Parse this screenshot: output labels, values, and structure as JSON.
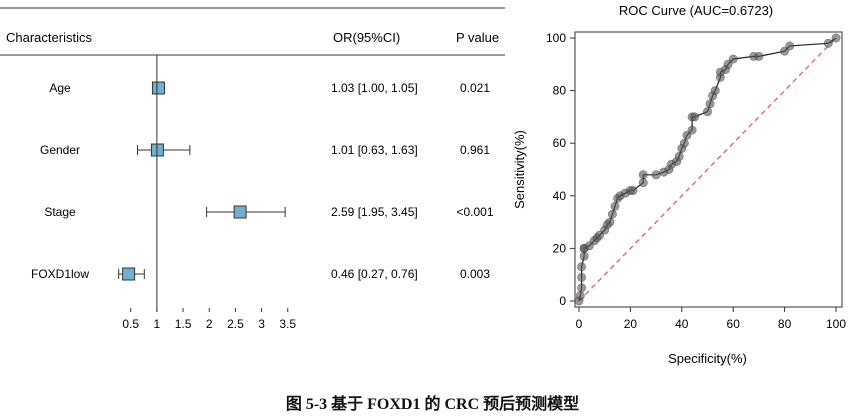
{
  "caption": "图 5-3  基于 FOXD1 的 CRC 预后预测模型",
  "chart_data": [
    {
      "type": "forest",
      "headers": {
        "characteristics": "Characteristics",
        "or_ci": "OR(95%CI)",
        "p_value": "P value"
      },
      "rows": [
        {
          "label": "Age",
          "or": 1.03,
          "lower": 1.0,
          "upper": 1.05,
          "or_text": "1.03 [1.00, 1.05]",
          "p_text": "0.021"
        },
        {
          "label": "Gender",
          "or": 1.01,
          "lower": 0.63,
          "upper": 1.63,
          "or_text": "1.01 [0.63, 1.63]",
          "p_text": "0.961"
        },
        {
          "label": "Stage",
          "or": 2.59,
          "lower": 1.95,
          "upper": 3.45,
          "or_text": "2.59 [1.95, 3.45]",
          "p_text": "<0.001"
        },
        {
          "label": "FOXD1low",
          "or": 0.46,
          "lower": 0.27,
          "upper": 0.76,
          "or_text": "0.46 [0.27, 0.76]",
          "p_text": "0.003"
        }
      ],
      "x_ticks": [
        0.5,
        1,
        1.5,
        2,
        2.5,
        3,
        3.5
      ],
      "x_tick_labels": [
        "0.5",
        "1",
        "1.5",
        "2",
        "2.5",
        "3",
        "3.5"
      ],
      "xlim": [
        0.2,
        3.6
      ],
      "reference_line": 1,
      "marker_color": "#6fb0d0"
    },
    {
      "type": "line",
      "title": "ROC Curve (AUC=0.6723)",
      "xlabel": "Specificity(%)",
      "ylabel": "Sensitivity(%)",
      "xlim": [
        0,
        100
      ],
      "ylim": [
        0,
        100
      ],
      "x_ticks": [
        0,
        20,
        40,
        60,
        80,
        100
      ],
      "y_ticks": [
        0,
        20,
        40,
        60,
        80,
        100
      ],
      "series": [
        {
          "x": [
            0,
            0.5,
            1,
            1,
            1,
            2,
            2,
            2,
            4,
            6,
            7,
            8,
            10,
            11,
            12,
            13,
            14,
            15,
            16,
            18,
            20,
            21,
            25,
            25,
            30,
            33,
            35,
            36,
            38,
            39,
            40,
            41,
            42,
            44,
            44,
            45,
            50,
            51,
            52,
            53,
            55,
            55,
            57,
            58,
            60,
            68,
            70,
            80,
            82,
            97,
            100
          ],
          "y": [
            0,
            2,
            5,
            9,
            13,
            17,
            20,
            20,
            21,
            23,
            24,
            25,
            27,
            29,
            30,
            33,
            36,
            39,
            40,
            41,
            42,
            42,
            45,
            48,
            48,
            49,
            50,
            52,
            53,
            55,
            58,
            60,
            63,
            65,
            70,
            70,
            72,
            75,
            78,
            80,
            85,
            87,
            88,
            90,
            92,
            93,
            93,
            95,
            97,
            98,
            100
          ],
          "color": "#222222",
          "marker_color": "#555555"
        }
      ],
      "reference_line": {
        "from": [
          0,
          0
        ],
        "to": [
          100,
          100
        ],
        "style": "dashed",
        "color": "#e06060"
      }
    }
  ]
}
